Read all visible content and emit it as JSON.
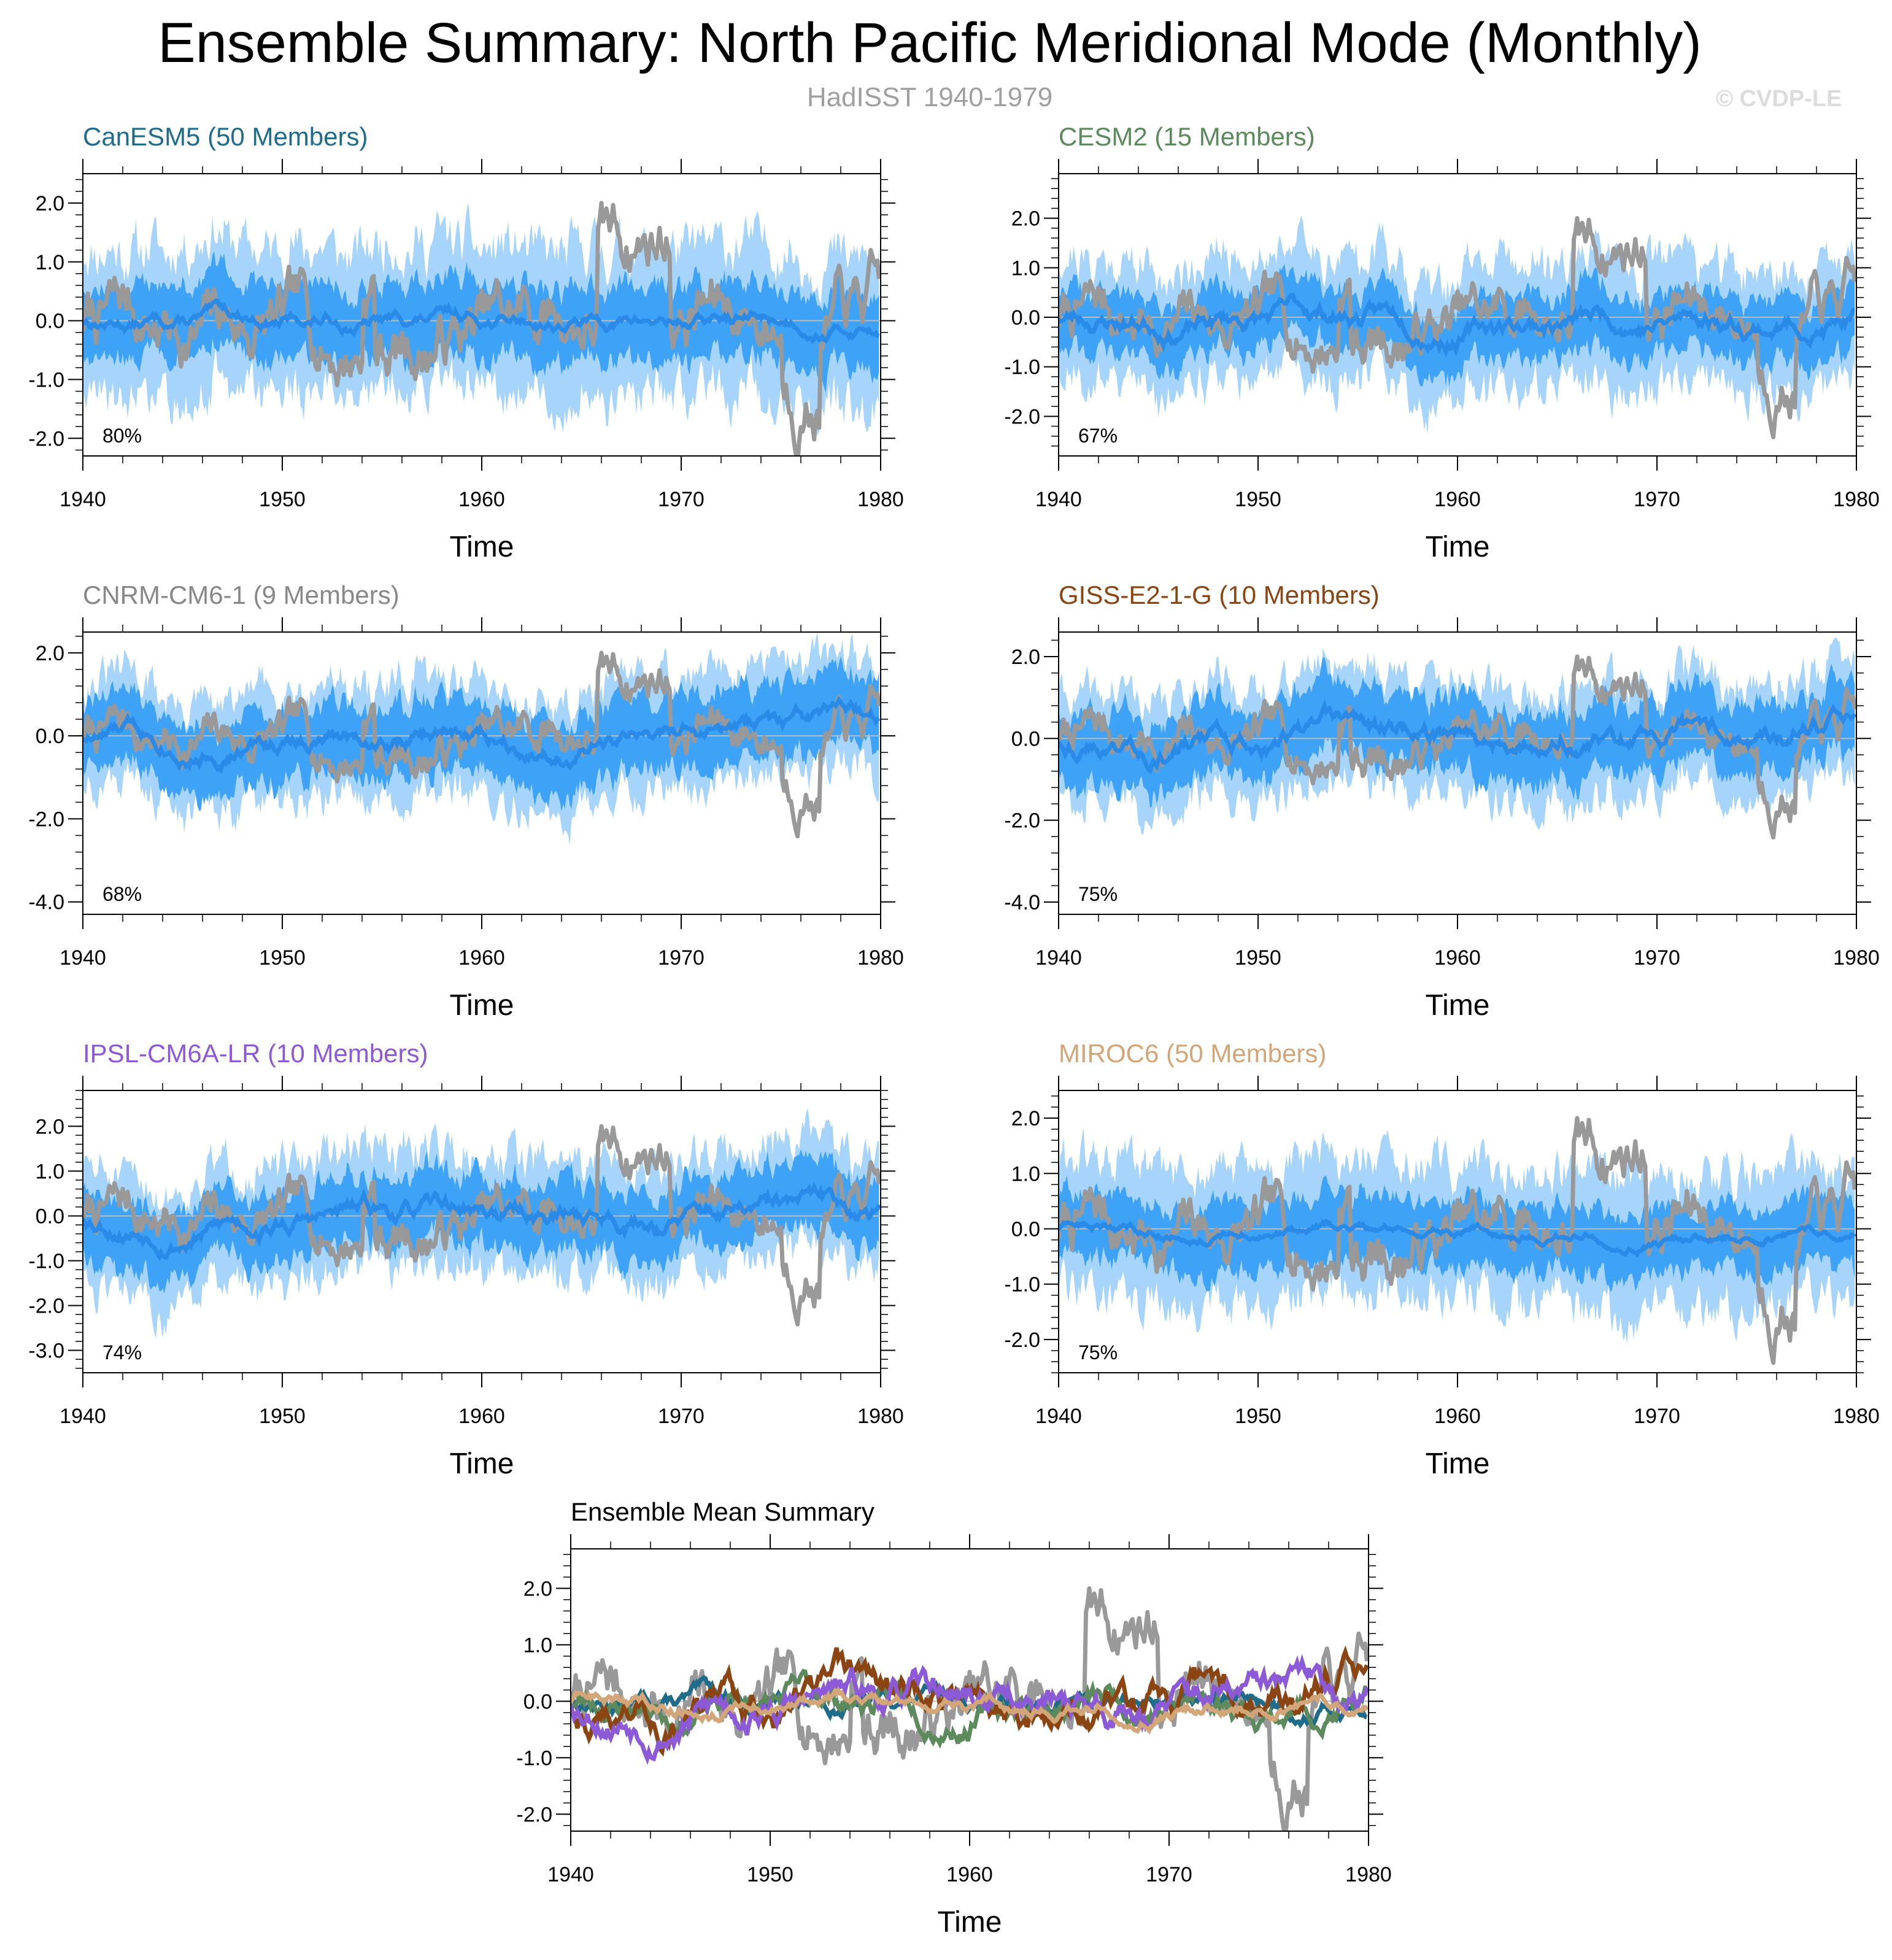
{
  "title": "Ensemble Summary: North Pacific Meridional Mode (Monthly)",
  "subtitle": "HadISST 1940-1979",
  "watermark": "© CVDP-LE",
  "colors": {
    "observed": "#999999",
    "band_outer": "#a6d4fb",
    "band_inner": "#3ea3f7",
    "ensemble_mean": "#2a8ae8",
    "zero_line": "#bbbbbb"
  },
  "chart_data": [
    {
      "type": "area",
      "title": "CanESM5 (50 Members)",
      "title_color": "#1e6b8a",
      "xlabel": "Time",
      "ylabel": "",
      "xlim": [
        1940,
        1980
      ],
      "ylim": [
        -2.3,
        2.5
      ],
      "xticks": [
        1940,
        1950,
        1960,
        1970,
        1980
      ],
      "yticks": [
        -2.0,
        -1.0,
        0.0,
        1.0,
        2.0
      ],
      "ytick_labels": [
        "-2.0",
        "-1.0",
        "0.0",
        "1.0",
        "2.0"
      ],
      "annotation": "80%",
      "series": [
        {
          "kind": "band_outer",
          "amplitude": 1.25,
          "seed": 11
        },
        {
          "kind": "band_inner",
          "amplitude": 0.62,
          "seed": 12
        },
        {
          "kind": "ensemble_mean",
          "amplitude": 0.16,
          "seed": 13
        },
        {
          "kind": "observed",
          "seed": 7
        }
      ]
    },
    {
      "type": "area",
      "title": "CESM2 (15 Members)",
      "title_color": "#5c8a5c",
      "xlabel": "Time",
      "ylabel": "",
      "xlim": [
        1940,
        1980
      ],
      "ylim": [
        -2.8,
        2.9
      ],
      "xticks": [
        1940,
        1950,
        1960,
        1970,
        1980
      ],
      "yticks": [
        -2.0,
        -1.0,
        0.0,
        1.0,
        2.0
      ],
      "ytick_labels": [
        "-2.0",
        "-1.0",
        "0.0",
        "1.0",
        "2.0"
      ],
      "annotation": "67%",
      "series": [
        {
          "kind": "band_outer",
          "amplitude": 1.25,
          "seed": 21
        },
        {
          "kind": "band_inner",
          "amplitude": 0.62,
          "seed": 22
        },
        {
          "kind": "ensemble_mean",
          "amplitude": 0.28,
          "seed": 23
        },
        {
          "kind": "observed",
          "seed": 7
        }
      ]
    },
    {
      "type": "area",
      "title": "CNRM-CM6-1 (9 Members)",
      "title_color": "#888888",
      "xlabel": "Time",
      "ylabel": "",
      "xlim": [
        1940,
        1980
      ],
      "ylim": [
        -4.3,
        2.5
      ],
      "xticks": [
        1940,
        1950,
        1960,
        1970,
        1980
      ],
      "yticks": [
        -4.0,
        -2.0,
        0.0,
        2.0
      ],
      "ytick_labels": [
        "-4.0",
        "-2.0",
        "0.0",
        "2.0"
      ],
      "annotation": "68%",
      "series": [
        {
          "kind": "band_outer",
          "amplitude": 1.35,
          "seed": 31
        },
        {
          "kind": "band_inner",
          "amplitude": 0.85,
          "seed": 32
        },
        {
          "kind": "ensemble_mean",
          "amplitude": 0.3,
          "seed": 33
        },
        {
          "kind": "observed",
          "seed": 7
        }
      ]
    },
    {
      "type": "area",
      "title": "GISS-E2-1-G (10 Members)",
      "title_color": "#8a4513",
      "xlabel": "Time",
      "ylabel": "",
      "xlim": [
        1940,
        1980
      ],
      "ylim": [
        -4.3,
        2.6
      ],
      "xticks": [
        1940,
        1950,
        1960,
        1970,
        1980
      ],
      "yticks": [
        -4.0,
        -2.0,
        0.0,
        2.0
      ],
      "ytick_labels": [
        "-4.0",
        "-2.0",
        "0.0",
        "2.0"
      ],
      "annotation": "75%",
      "series": [
        {
          "kind": "band_outer",
          "amplitude": 1.35,
          "seed": 41
        },
        {
          "kind": "band_inner",
          "amplitude": 0.85,
          "seed": 42
        },
        {
          "kind": "ensemble_mean",
          "amplitude": 0.35,
          "seed": 43
        },
        {
          "kind": "observed",
          "seed": 7
        }
      ]
    },
    {
      "type": "area",
      "title": "IPSL-CM6A-LR (10 Members)",
      "title_color": "#8c5ad6",
      "xlabel": "Time",
      "ylabel": "",
      "xlim": [
        1940,
        1980
      ],
      "ylim": [
        -3.5,
        2.8
      ],
      "xticks": [
        1940,
        1950,
        1960,
        1970,
        1980
      ],
      "yticks": [
        -3.0,
        -2.0,
        -1.0,
        0.0,
        1.0,
        2.0
      ],
      "ytick_labels": [
        "-3.0",
        "-2.0",
        "-1.0",
        "0.0",
        "1.0",
        "2.0"
      ],
      "annotation": "74%",
      "series": [
        {
          "kind": "band_outer",
          "amplitude": 1.3,
          "seed": 51
        },
        {
          "kind": "band_inner",
          "amplitude": 0.75,
          "seed": 52
        },
        {
          "kind": "ensemble_mean",
          "amplitude": 0.3,
          "seed": 53
        },
        {
          "kind": "observed",
          "seed": 7
        }
      ]
    },
    {
      "type": "area",
      "title": "MIROC6 (50 Members)",
      "title_color": "#d2a679",
      "xlabel": "Time",
      "ylabel": "",
      "xlim": [
        1940,
        1980
      ],
      "ylim": [
        -2.6,
        2.5
      ],
      "xticks": [
        1940,
        1950,
        1960,
        1970,
        1980
      ],
      "yticks": [
        -2.0,
        -1.0,
        0.0,
        1.0,
        2.0
      ],
      "ytick_labels": [
        "-2.0",
        "-1.0",
        "0.0",
        "1.0",
        "2.0"
      ],
      "annotation": "75%",
      "series": [
        {
          "kind": "band_outer",
          "amplitude": 1.2,
          "seed": 61
        },
        {
          "kind": "band_inner",
          "amplitude": 0.6,
          "seed": 62
        },
        {
          "kind": "ensemble_mean",
          "amplitude": 0.12,
          "seed": 63
        },
        {
          "kind": "observed",
          "seed": 7
        }
      ]
    },
    {
      "type": "line",
      "title": "Ensemble Mean Summary",
      "title_color": "#000000",
      "xlabel": "Time",
      "ylabel": "",
      "xlim": [
        1940,
        1980
      ],
      "ylim": [
        -2.3,
        2.7
      ],
      "xticks": [
        1940,
        1950,
        1960,
        1970,
        1980
      ],
      "yticks": [
        -2.0,
        -1.0,
        0.0,
        1.0,
        2.0
      ],
      "ytick_labels": [
        "-2.0",
        "-1.0",
        "0.0",
        "1.0",
        "2.0"
      ],
      "annotation": "",
      "series": [
        {
          "kind": "observed",
          "seed": 7
        },
        {
          "kind": "model_mean",
          "color": "#1e6b8a",
          "amplitude": 0.18,
          "seed": 13
        },
        {
          "kind": "model_mean",
          "color": "#5c8a5c",
          "amplitude": 0.3,
          "seed": 23
        },
        {
          "kind": "model_mean",
          "color": "#8a4513",
          "amplitude": 0.38,
          "seed": 43
        },
        {
          "kind": "model_mean",
          "color": "#8c5ad6",
          "amplitude": 0.33,
          "seed": 53
        },
        {
          "kind": "model_mean",
          "color": "#d2a679",
          "amplitude": 0.14,
          "seed": 63
        }
      ]
    }
  ]
}
